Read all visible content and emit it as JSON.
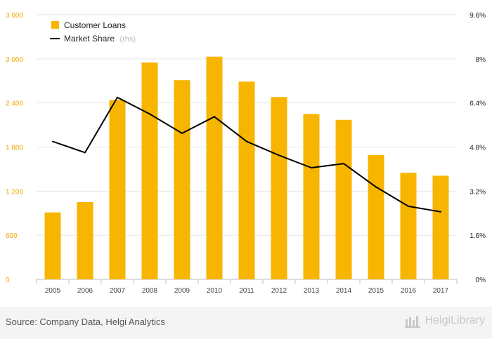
{
  "chart_data": {
    "type": "bar",
    "categories": [
      "2005",
      "2006",
      "2007",
      "2008",
      "2009",
      "2010",
      "2011",
      "2012",
      "2013",
      "2014",
      "2015",
      "2016",
      "2017"
    ],
    "series": [
      {
        "name": "Customer Loans",
        "type": "bar",
        "axis": "left",
        "color": "#f7b500",
        "values": [
          910,
          1050,
          2440,
          2950,
          2710,
          3030,
          2690,
          2480,
          2250,
          2170,
          1690,
          1450,
          1410
        ]
      },
      {
        "name": "Market Share",
        "type": "line",
        "axis": "right",
        "color": "#000000",
        "values": [
          5.0,
          4.6,
          6.6,
          6.0,
          5.3,
          5.9,
          5.0,
          4.5,
          4.05,
          4.2,
          3.35,
          2.65,
          2.45
        ]
      }
    ],
    "left_axis": {
      "ylim": [
        0,
        3600
      ],
      "ticks": [
        "0",
        "600",
        "1 200",
        "1 800",
        "2 400",
        "3 000",
        "3 600"
      ]
    },
    "right_axis": {
      "ylim": [
        0,
        9.6
      ],
      "ticks": [
        "0%",
        "1.6%",
        "3.2%",
        "4.8%",
        "6.4%",
        "8%",
        "9.6%"
      ]
    },
    "legend": {
      "position": "top-left",
      "items": [
        {
          "label": "Customer Loans",
          "suffix": ""
        },
        {
          "label": "Market Share",
          "suffix": "(rhs)"
        }
      ]
    },
    "grid": true
  },
  "footer": {
    "source": "Source: Company Data, Helgi Analytics",
    "brand": "HelgiLibrary"
  }
}
